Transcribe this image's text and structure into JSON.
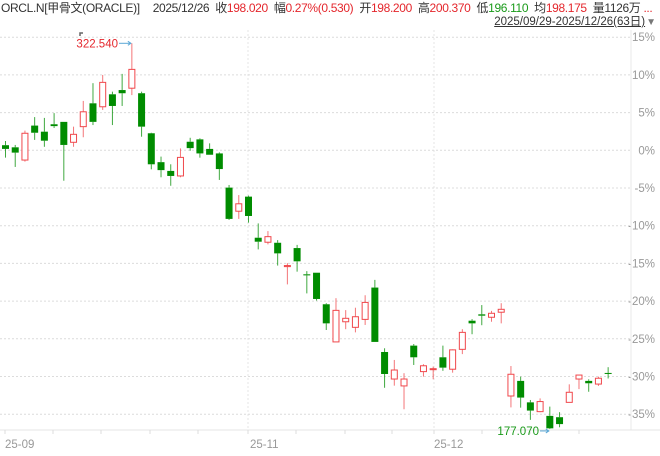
{
  "header": {
    "symbol": "ORCL.N[甲骨文(ORACLE)]",
    "date": "2025/12/26",
    "close_label": "收",
    "close": "198.020",
    "change_label": "幅",
    "change": "0.27%(0.530)",
    "open_label": "开",
    "open": "198.200",
    "high_label": "高",
    "high": "200.370",
    "low_label": "低",
    "low": "196.110",
    "avg_label": "均",
    "avg": "198.175",
    "vol_label": "量",
    "vol": "1126万",
    "more": "...",
    "range": "2025/09/29-2025/12/26(63日)",
    "range_dropdown_icon": "triangle-down-icon"
  },
  "colors": {
    "up": "#f0474b",
    "down": "#008c00",
    "grid": "#dcdcdc",
    "arrow": "#5aa7d6"
  },
  "chart_data": {
    "type": "candlestick",
    "y_ticks": [
      "15%",
      "10%",
      "5%",
      "0%",
      "-5%",
      "-10%",
      "-15%",
      "-20%",
      "-25%",
      "-30%",
      "-35%"
    ],
    "x_ticks": [
      "25-09",
      "25-11",
      "25-12"
    ],
    "grid": true,
    "annotations": {
      "max": "322.540",
      "min": "177.070"
    },
    "ohlc": [
      [
        284.1,
        285.7,
        279.4,
        282.7
      ],
      [
        283.3,
        284.2,
        275.9,
        281.3
      ],
      [
        278.5,
        289.6,
        277.9,
        288.6
      ],
      [
        291.5,
        294.7,
        286.1,
        288.8
      ],
      [
        289.2,
        294.4,
        283.5,
        285.8
      ],
      [
        292.0,
        296.2,
        290.6,
        291.3
      ],
      [
        292.9,
        292.9,
        270.7,
        284.2
      ],
      [
        285.2,
        291.1,
        283.5,
        288.2
      ],
      [
        291.1,
        300.8,
        287.1,
        296.7
      ],
      [
        299.9,
        307.5,
        291.7,
        292.9
      ],
      [
        298.6,
        310.6,
        297.4,
        307.8
      ],
      [
        303.3,
        304.3,
        291.7,
        298.9
      ],
      [
        304.9,
        311.0,
        298.9,
        303.7
      ],
      [
        305.6,
        322.54,
        303.0,
        312.7
      ],
      [
        303.7,
        304.3,
        287.3,
        291.1
      ],
      [
        288.6,
        288.8,
        275.0,
        276.9
      ],
      [
        277.7,
        279.8,
        272.0,
        274.7
      ],
      [
        274.4,
        276.9,
        268.8,
        272.5
      ],
      [
        272.5,
        282.9,
        272.0,
        279.5
      ],
      [
        285.4,
        286.9,
        282.0,
        283.0
      ],
      [
        286.3,
        286.7,
        279.4,
        281.0
      ],
      [
        282.7,
        284.8,
        280.5,
        280.5
      ],
      [
        281.0,
        281.4,
        271.0,
        275.1
      ],
      [
        268.1,
        269.1,
        255.9,
        256.3
      ],
      [
        259.2,
        265.3,
        256.3,
        262.0
      ],
      [
        264.7,
        265.1,
        254.9,
        257.4
      ],
      [
        249.2,
        254.6,
        244.8,
        247.7
      ],
      [
        247.5,
        251.7,
        246.7,
        249.6
      ],
      [
        247.3,
        248.3,
        238.7,
        243.3
      ],
      [
        238.3,
        239.6,
        231.6,
        238.7
      ],
      [
        245.3,
        246.5,
        236.4,
        240.3
      ],
      [
        235.4,
        236.6,
        228.2,
        235.0
      ],
      [
        236.0,
        236.0,
        225.5,
        226.1
      ],
      [
        224.1,
        224.5,
        214.4,
        216.9
      ],
      [
        209.9,
        226.4,
        209.9,
        221.8
      ],
      [
        217.5,
        221.9,
        214.7,
        218.8
      ],
      [
        215.4,
        222.8,
        213.5,
        219.4
      ],
      [
        218.4,
        227.5,
        216.3,
        224.8
      ],
      [
        230.4,
        233.3,
        209.9,
        209.9
      ],
      [
        206.1,
        207.5,
        192.6,
        197.8
      ],
      [
        195.9,
        203.1,
        193.4,
        199.3
      ],
      [
        193.3,
        198.1,
        184.5,
        195.9
      ],
      [
        208.5,
        209.1,
        201.2,
        204.1
      ],
      [
        198.7,
        201.5,
        196.8,
        200.9
      ],
      [
        199.6,
        200.6,
        195.8,
        199.8
      ],
      [
        204.1,
        208.5,
        199.0,
        200.2
      ],
      [
        199.6,
        207.1,
        198.3,
        206.9
      ],
      [
        207.1,
        214.7,
        205.3,
        213.5
      ],
      [
        217.9,
        218.5,
        212.8,
        216.9
      ],
      [
        220.3,
        223.8,
        216.2,
        219.8
      ],
      [
        219.2,
        221.6,
        217.5,
        220.7
      ],
      [
        221.1,
        224.5,
        216.9,
        222.2
      ],
      [
        189.5,
        200.8,
        185.2,
        197.7
      ],
      [
        195.2,
        196.8,
        185.1,
        188.9
      ],
      [
        187.1,
        188.0,
        180.5,
        184.0
      ],
      [
        183.6,
        188.6,
        183.4,
        187.4
      ],
      [
        182.0,
        185.5,
        177.07,
        177.3
      ],
      [
        181.5,
        183.4,
        177.7,
        178.9
      ],
      [
        187.1,
        193.9,
        187.1,
        190.9
      ],
      [
        195.9,
        197.4,
        192.1,
        197.4
      ],
      [
        195.2,
        195.8,
        191.1,
        194.3
      ],
      [
        194.0,
        196.8,
        193.3,
        196.2
      ],
      [
        198.2,
        200.37,
        196.11,
        198.02
      ]
    ]
  }
}
